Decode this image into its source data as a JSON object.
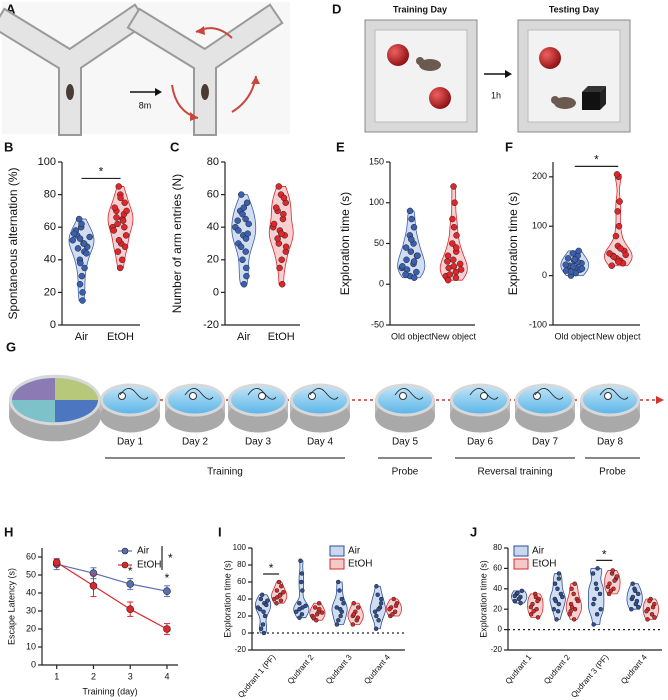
{
  "diagrams": {
    "A": {
      "panel": "A",
      "delay": "8m"
    },
    "D": {
      "panel": "D",
      "training": "Training Day",
      "testing": "Testing Day",
      "delay": "1h"
    },
    "G": {
      "panel": "G",
      "days": [
        "Day 1",
        "Day 2",
        "Day 3",
        "Day 4",
        "Day 5",
        "Day 6",
        "Day 7",
        "Day 8"
      ],
      "phases": [
        "Training",
        "Probe",
        "Reversal training",
        "Probe"
      ]
    }
  },
  "chart_data": [
    {
      "type": "violin",
      "panel": "B",
      "ylabel": "Spontaneous alternation (%)",
      "categories": [
        "Air",
        "EtOH"
      ],
      "values": [
        [
          52,
          50,
          55,
          48,
          60,
          58,
          45,
          40,
          35,
          30,
          25,
          15,
          53,
          56,
          50,
          47,
          44,
          62,
          65,
          20,
          38,
          54
        ],
        [
          60,
          65,
          70,
          75,
          80,
          72,
          68,
          62,
          55,
          50,
          45,
          40,
          35,
          58,
          64,
          66,
          70,
          78,
          85,
          60,
          52,
          48
        ]
      ],
      "colors": [
        "#3b5fb0",
        "#e0262b"
      ],
      "fills": [
        "#c9d7ef",
        "#f6c9c9"
      ],
      "ylim": [
        0,
        100
      ],
      "yticks": [
        0,
        20,
        40,
        60,
        80,
        100
      ],
      "significance": {
        "label": "*"
      }
    },
    {
      "type": "violin",
      "panel": "C",
      "ylabel": "Number of arm entries (N)",
      "categories": [
        "Air",
        "EtOH"
      ],
      "values": [
        [
          40,
          45,
          50,
          55,
          35,
          30,
          25,
          20,
          10,
          5,
          38,
          42,
          48,
          60,
          33,
          28,
          15,
          52,
          44,
          36
        ],
        [
          40,
          45,
          50,
          55,
          60,
          65,
          35,
          30,
          25,
          20,
          15,
          5,
          38,
          42,
          48,
          33,
          28,
          36,
          52,
          58
        ]
      ],
      "colors": [
        "#3b5fb0",
        "#e0262b"
      ],
      "fills": [
        "#c9d7ef",
        "#f6c9c9"
      ],
      "ylim": [
        -20,
        80
      ],
      "yticks": [
        -20,
        0,
        20,
        40,
        60,
        80
      ]
    },
    {
      "type": "violin",
      "panel": "E",
      "ylabel": "Exploration time (s)",
      "categories": [
        "Old object",
        "New object"
      ],
      "values": [
        [
          20,
          25,
          30,
          35,
          40,
          45,
          50,
          60,
          70,
          80,
          90,
          15,
          10,
          22,
          28,
          18,
          35,
          55,
          12,
          8
        ],
        [
          10,
          15,
          20,
          25,
          30,
          35,
          40,
          50,
          60,
          70,
          80,
          100,
          120,
          5,
          8,
          12,
          18,
          22,
          28,
          45
        ]
      ],
      "colors": [
        "#3b5fb0",
        "#e0262b"
      ],
      "fills": [
        "#c9d7ef",
        "#f6c9c9"
      ],
      "ylim": [
        -50,
        150
      ],
      "yticks": [
        -50,
        0,
        50,
        100,
        150
      ]
    },
    {
      "type": "violin",
      "panel": "F",
      "ylabel": "Exploration time (s)",
      "categories": [
        "Old object",
        "New object"
      ],
      "values": [
        [
          10,
          15,
          20,
          25,
          30,
          35,
          40,
          45,
          50,
          5,
          0,
          12,
          18,
          22,
          28,
          8,
          14,
          33
        ],
        [
          20,
          30,
          40,
          50,
          60,
          80,
          100,
          130,
          150,
          200,
          205,
          25,
          35,
          45,
          55,
          38,
          42,
          28
        ]
      ],
      "colors": [
        "#3b5fb0",
        "#e0262b"
      ],
      "fills": [
        "#c9d7ef",
        "#f6c9c9"
      ],
      "ylim": [
        -100,
        230
      ],
      "yticks": [
        -100,
        0,
        100,
        200
      ],
      "significance": {
        "label": "*"
      }
    },
    {
      "type": "line",
      "panel": "H",
      "ylabel": "Escape Latency (s)",
      "xlabel": "Training (day)",
      "x": [
        1,
        2,
        3,
        4
      ],
      "xlim": [
        0.6,
        4.3
      ],
      "xticks": [
        1,
        2,
        3,
        4
      ],
      "series": [
        {
          "name": "Air",
          "color": "#5a6fae",
          "values": [
            56,
            51,
            45,
            41
          ],
          "errors": [
            3,
            3,
            3,
            3
          ]
        },
        {
          "name": "EtOH",
          "color": "#e0262b",
          "values": [
            57,
            44,
            31,
            20
          ],
          "errors": [
            2,
            6,
            4,
            3
          ]
        }
      ],
      "ylim": [
        0,
        65
      ],
      "yticks": [
        0,
        10,
        20,
        30,
        40,
        50,
        60
      ],
      "significance": [
        {
          "label": "*",
          "x": 3
        },
        {
          "label": "*",
          "x": 4
        }
      ],
      "legend_significance": "*"
    },
    {
      "type": "violin",
      "panel": "I",
      "ylabel": "Exploration time (s)",
      "categories": [
        "Qudrant 1 (PF)",
        "Qudrant 2",
        "Qudrant 3",
        "Qudrant 4"
      ],
      "series": [
        {
          "name": "Air",
          "color": "#2f4f96",
          "fill": "#c9d7ef",
          "values": [
            [
              30,
              35,
              40,
              20,
              10,
              5,
              0,
              45,
              38,
              25,
              28,
              33
            ],
            [
              25,
              30,
              35,
              50,
              60,
              85,
              70,
              28,
              32,
              22,
              18
            ],
            [
              10,
              20,
              30,
              40,
              50,
              60,
              25,
              15,
              35,
              28
            ],
            [
              5,
              15,
              25,
              35,
              45,
              55,
              30,
              20,
              40,
              28
            ]
          ]
        },
        {
          "name": "EtOH",
          "color": "#d82a2a",
          "fill": "#f6c9c9",
          "values": [
            [
              40,
              45,
              50,
              55,
              60,
              35,
              38,
              42,
              48,
              44
            ],
            [
              20,
              25,
              30,
              35,
              22,
              18,
              28,
              15,
              24
            ],
            [
              10,
              15,
              20,
              30,
              25,
              35,
              18,
              22
            ],
            [
              20,
              25,
              30,
              35,
              40,
              28,
              32,
              22
            ]
          ]
        }
      ],
      "ylim": [
        -20,
        100
      ],
      "yticks": [
        -20,
        0,
        20,
        40,
        60,
        80,
        100
      ],
      "ref_line": 0,
      "significance": [
        {
          "label": "*",
          "category": 0
        }
      ]
    },
    {
      "type": "violin",
      "panel": "J",
      "ylabel": "Exploration time (s)",
      "categories": [
        "Qudrant 1",
        "Qudrant 2",
        "Qudrant 3 (PF)",
        "Qudrant 4"
      ],
      "series": [
        {
          "name": "Air",
          "color": "#2f4f96",
          "fill": "#c9d7ef",
          "values": [
            [
              28,
              32,
              35,
              38,
              30,
              33,
              26,
              36
            ],
            [
              20,
              25,
              30,
              35,
              40,
              45,
              50,
              28,
              32,
              18,
              10,
              55
            ],
            [
              5,
              15,
              25,
              35,
              45,
              55,
              60,
              30,
              20,
              40
            ],
            [
              20,
              25,
              30,
              35,
              40,
              45,
              28,
              32,
              22,
              38
            ]
          ]
        },
        {
          "name": "EtOH",
          "color": "#d82a2a",
          "fill": "#f6c9c9",
          "values": [
            [
              15,
              20,
              25,
              30,
              35,
              22,
              28,
              18,
              12,
              32
            ],
            [
              15,
              20,
              25,
              30,
              35,
              40,
              45,
              22,
              28,
              10,
              18
            ],
            [
              35,
              40,
              45,
              50,
              55,
              42,
              48,
              38,
              52,
              58
            ],
            [
              10,
              15,
              20,
              25,
              30,
              18,
              22,
              28,
              12
            ]
          ]
        }
      ],
      "ylim": [
        -20,
        80
      ],
      "yticks": [
        -20,
        0,
        20,
        40,
        60,
        80
      ],
      "ref_line": 0,
      "significance": [
        {
          "label": "*",
          "category": 2
        }
      ]
    }
  ]
}
